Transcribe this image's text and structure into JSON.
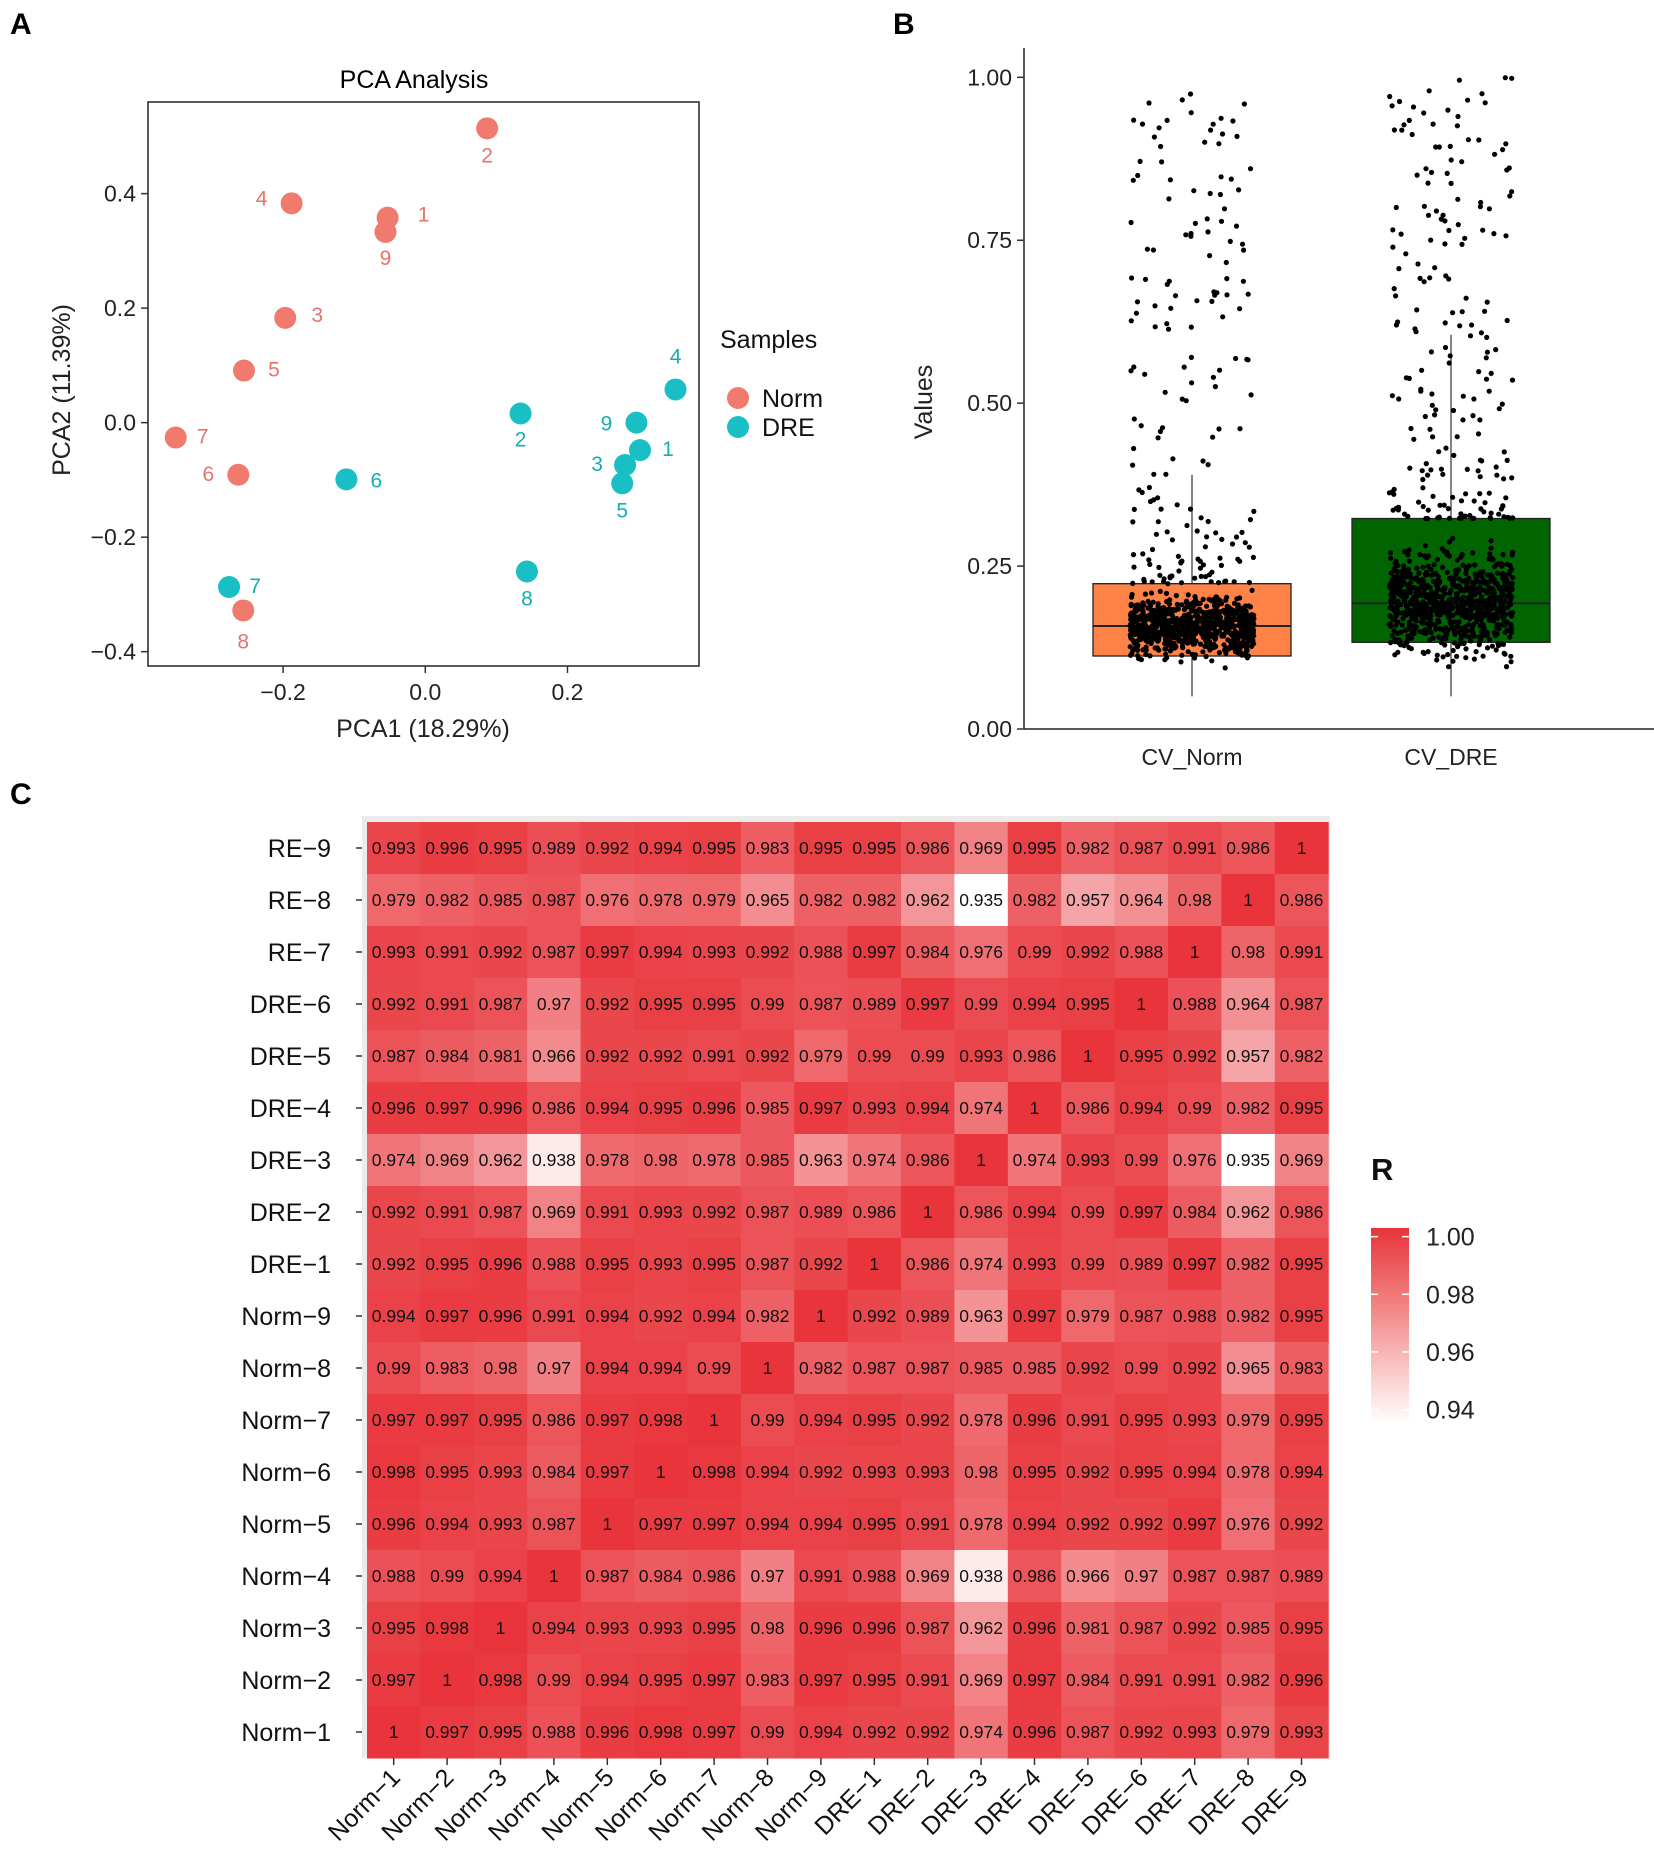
{
  "panels": {
    "a": "A",
    "b": "B",
    "c": "C"
  },
  "colors": {
    "norm": "#F07A6E",
    "dre": "#19BFC4",
    "norm_label": "#E8726A",
    "dre_label": "#14AEB3",
    "box_norm": "#FF8247",
    "box_dre": "#006400",
    "heat_high": "#E8343A",
    "heat_low": "#FFFFFF"
  },
  "chart_data": [
    {
      "type": "scatter",
      "title": "PCA Analysis",
      "xlabel": "PCA1 (18.29%)",
      "ylabel": "PCA2 (11.39%)",
      "xlim": [
        -0.39,
        0.385
      ],
      "ylim": [
        -0.425,
        0.56
      ],
      "xticks": [
        -0.2,
        0.0,
        0.2
      ],
      "xtick_labels": [
        "−0.2",
        "0.0",
        "0.2"
      ],
      "yticks": [
        -0.4,
        -0.2,
        0.0,
        0.2,
        0.4
      ],
      "ytick_labels": [
        "−0.4",
        "−0.2",
        "0.0",
        "0.2",
        "0.4"
      ],
      "legend": {
        "title": "Samples",
        "position": "right",
        "entries": [
          "Norm",
          "DRE"
        ]
      },
      "series": [
        {
          "name": "Norm",
          "points": [
            {
              "label": "1",
              "x": -0.053,
              "y": 0.358
            },
            {
              "label": "2",
              "x": 0.087,
              "y": 0.514
            },
            {
              "label": "3",
              "x": -0.197,
              "y": 0.183
            },
            {
              "label": "4",
              "x": -0.188,
              "y": 0.383
            },
            {
              "label": "5",
              "x": -0.255,
              "y": 0.091
            },
            {
              "label": "6",
              "x": -0.263,
              "y": -0.091
            },
            {
              "label": "7",
              "x": -0.351,
              "y": -0.026
            },
            {
              "label": "8",
              "x": -0.256,
              "y": -0.328
            },
            {
              "label": "9",
              "x": -0.056,
              "y": 0.333
            }
          ]
        },
        {
          "name": "DRE",
          "points": [
            {
              "label": "1",
              "x": 0.302,
              "y": -0.048
            },
            {
              "label": "2",
              "x": 0.134,
              "y": 0.016
            },
            {
              "label": "3",
              "x": 0.281,
              "y": -0.074
            },
            {
              "label": "4",
              "x": 0.352,
              "y": 0.058
            },
            {
              "label": "5",
              "x": 0.277,
              "y": -0.106
            },
            {
              "label": "6",
              "x": -0.111,
              "y": -0.099
            },
            {
              "label": "7",
              "x": -0.276,
              "y": -0.287
            },
            {
              "label": "8",
              "x": 0.143,
              "y": -0.26
            },
            {
              "label": "9",
              "x": 0.297,
              "y": 0.0
            }
          ]
        }
      ]
    },
    {
      "type": "box",
      "xlabel": "",
      "ylabel": "Values",
      "ylim": [
        0.0,
        1.045
      ],
      "yticks": [
        0.0,
        0.25,
        0.5,
        0.75,
        1.0
      ],
      "ytick_labels": [
        "0.00",
        "0.25",
        "0.50",
        "0.75",
        "1.00"
      ],
      "categories": [
        "CV_Norm",
        "CV_DRE"
      ],
      "boxes": [
        {
          "name": "CV_Norm",
          "q1": 0.112,
          "median": 0.158,
          "q3": 0.223,
          "whisker_low": 0.05,
          "whisker_high": 0.39,
          "n_points": 1000,
          "max_point": 0.98
        },
        {
          "name": "CV_DRE",
          "q1": 0.133,
          "median": 0.193,
          "q3": 0.323,
          "whisker_low": 0.05,
          "whisker_high": 0.605,
          "n_points": 1000,
          "max_point": 1.0
        }
      ]
    },
    {
      "type": "heatmap",
      "legend": {
        "title": "R",
        "ticks": [
          1.0,
          0.98,
          0.96,
          0.94
        ],
        "tick_labels": [
          "1.00",
          "0.98",
          "0.96",
          "0.94"
        ],
        "range": [
          0.935,
          1.0
        ]
      },
      "x_labels": [
        "Norm−1",
        "Norm−2",
        "Norm−3",
        "Norm−4",
        "Norm−5",
        "Norm−6",
        "Norm−7",
        "Norm−8",
        "Norm−9",
        "DRE−1",
        "DRE−2",
        "DRE−3",
        "DRE−4",
        "DRE−5",
        "DRE−6",
        "DRE−7",
        "DRE−8",
        "DRE−9"
      ],
      "y_labels_top_to_bottom": [
        "RE−9",
        "RE−8",
        "RE−7",
        "DRE−6",
        "DRE−5",
        "DRE−4",
        "DRE−3",
        "DRE−2",
        "DRE−1",
        "Norm−9",
        "Norm−8",
        "Norm−7",
        "Norm−6",
        "Norm−5",
        "Norm−4",
        "Norm−3",
        "Norm−2",
        "Norm−1"
      ],
      "rows_top_to_bottom": [
        [
          "0.993",
          "0.996",
          "0.995",
          "0.989",
          "0.992",
          "0.994",
          "0.995",
          "0.983",
          "0.995",
          "0.995",
          "0.986",
          "0.969",
          "0.995",
          "0.982",
          "0.987",
          "0.991",
          "0.986",
          "1"
        ],
        [
          "0.979",
          "0.982",
          "0.985",
          "0.987",
          "0.976",
          "0.978",
          "0.979",
          "0.965",
          "0.982",
          "0.982",
          "0.962",
          "0.935",
          "0.982",
          "0.957",
          "0.964",
          "0.98",
          "1",
          "0.986"
        ],
        [
          "0.993",
          "0.991",
          "0.992",
          "0.987",
          "0.997",
          "0.994",
          "0.993",
          "0.992",
          "0.988",
          "0.997",
          "0.984",
          "0.976",
          "0.99",
          "0.992",
          "0.988",
          "1",
          "0.98",
          "0.991"
        ],
        [
          "0.992",
          "0.991",
          "0.987",
          "0.97",
          "0.992",
          "0.995",
          "0.995",
          "0.99",
          "0.987",
          "0.989",
          "0.997",
          "0.99",
          "0.994",
          "0.995",
          "1",
          "0.988",
          "0.964",
          "0.987"
        ],
        [
          "0.987",
          "0.984",
          "0.981",
          "0.966",
          "0.992",
          "0.992",
          "0.991",
          "0.992",
          "0.979",
          "0.99",
          "0.99",
          "0.993",
          "0.986",
          "1",
          "0.995",
          "0.992",
          "0.957",
          "0.982"
        ],
        [
          "0.996",
          "0.997",
          "0.996",
          "0.986",
          "0.994",
          "0.995",
          "0.996",
          "0.985",
          "0.997",
          "0.993",
          "0.994",
          "0.974",
          "1",
          "0.986",
          "0.994",
          "0.99",
          "0.982",
          "0.995"
        ],
        [
          "0.974",
          "0.969",
          "0.962",
          "0.938",
          "0.978",
          "0.98",
          "0.978",
          "0.985",
          "0.963",
          "0.974",
          "0.986",
          "1",
          "0.974",
          "0.993",
          "0.99",
          "0.976",
          "0.935",
          "0.969"
        ],
        [
          "0.992",
          "0.991",
          "0.987",
          "0.969",
          "0.991",
          "0.993",
          "0.992",
          "0.987",
          "0.989",
          "0.986",
          "1",
          "0.986",
          "0.994",
          "0.99",
          "0.997",
          "0.984",
          "0.962",
          "0.986"
        ],
        [
          "0.992",
          "0.995",
          "0.996",
          "0.988",
          "0.995",
          "0.993",
          "0.995",
          "0.987",
          "0.992",
          "1",
          "0.986",
          "0.974",
          "0.993",
          "0.99",
          "0.989",
          "0.997",
          "0.982",
          "0.995"
        ],
        [
          "0.994",
          "0.997",
          "0.996",
          "0.991",
          "0.994",
          "0.992",
          "0.994",
          "0.982",
          "1",
          "0.992",
          "0.989",
          "0.963",
          "0.997",
          "0.979",
          "0.987",
          "0.988",
          "0.982",
          "0.995"
        ],
        [
          "0.99",
          "0.983",
          "0.98",
          "0.97",
          "0.994",
          "0.994",
          "0.99",
          "1",
          "0.982",
          "0.987",
          "0.987",
          "0.985",
          "0.985",
          "0.992",
          "0.99",
          "0.992",
          "0.965",
          "0.983"
        ],
        [
          "0.997",
          "0.997",
          "0.995",
          "0.986",
          "0.997",
          "0.998",
          "1",
          "0.99",
          "0.994",
          "0.995",
          "0.992",
          "0.978",
          "0.996",
          "0.991",
          "0.995",
          "0.993",
          "0.979",
          "0.995"
        ],
        [
          "0.998",
          "0.995",
          "0.993",
          "0.984",
          "0.997",
          "1",
          "0.998",
          "0.994",
          "0.992",
          "0.993",
          "0.993",
          "0.98",
          "0.995",
          "0.992",
          "0.995",
          "0.994",
          "0.978",
          "0.994"
        ],
        [
          "0.996",
          "0.994",
          "0.993",
          "0.987",
          "1",
          "0.997",
          "0.997",
          "0.994",
          "0.994",
          "0.995",
          "0.991",
          "0.978",
          "0.994",
          "0.992",
          "0.992",
          "0.997",
          "0.976",
          "0.992"
        ],
        [
          "0.988",
          "0.99",
          "0.994",
          "1",
          "0.987",
          "0.984",
          "0.986",
          "0.97",
          "0.991",
          "0.988",
          "0.969",
          "0.938",
          "0.986",
          "0.966",
          "0.97",
          "0.987",
          "0.987",
          "0.989"
        ],
        [
          "0.995",
          "0.998",
          "1",
          "0.994",
          "0.993",
          "0.993",
          "0.995",
          "0.98",
          "0.996",
          "0.996",
          "0.987",
          "0.962",
          "0.996",
          "0.981",
          "0.987",
          "0.992",
          "0.985",
          "0.995"
        ],
        [
          "0.997",
          "1",
          "0.998",
          "0.99",
          "0.994",
          "0.995",
          "0.997",
          "0.983",
          "0.997",
          "0.995",
          "0.991",
          "0.969",
          "0.997",
          "0.984",
          "0.991",
          "0.991",
          "0.982",
          "0.996"
        ],
        [
          "1",
          "0.997",
          "0.995",
          "0.988",
          "0.996",
          "0.998",
          "0.997",
          "0.99",
          "0.994",
          "0.992",
          "0.992",
          "0.974",
          "0.996",
          "0.987",
          "0.992",
          "0.993",
          "0.979",
          "0.993"
        ]
      ]
    }
  ]
}
